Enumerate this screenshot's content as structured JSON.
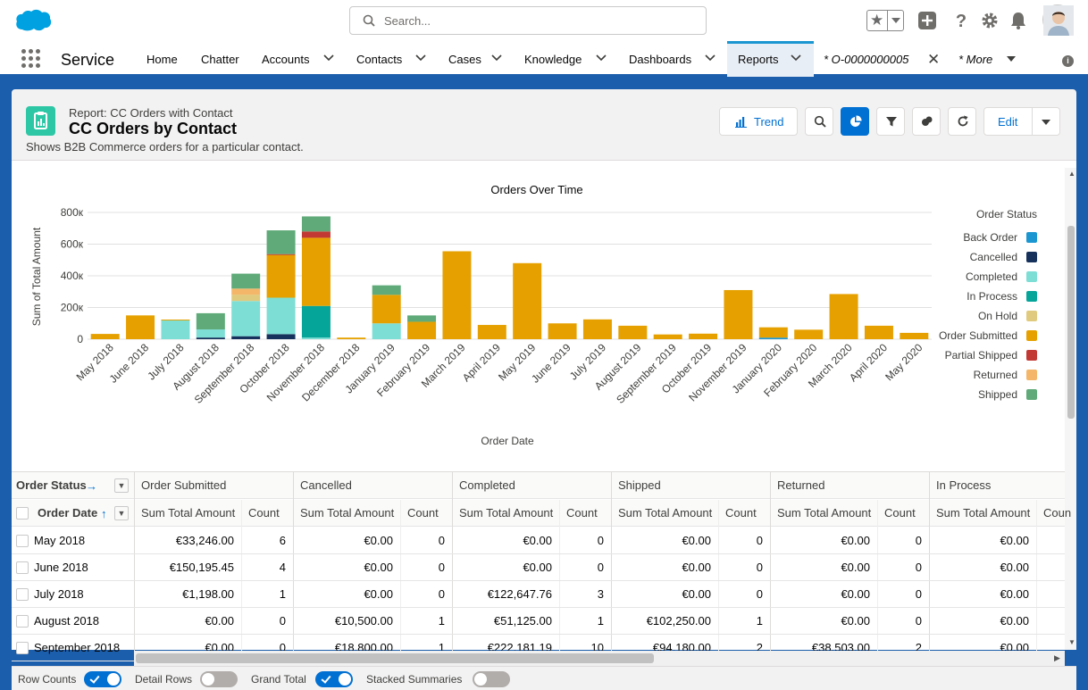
{
  "header": {
    "search_placeholder": "Search..."
  },
  "nav": {
    "app_name": "Service",
    "items": [
      {
        "label": "Home"
      },
      {
        "label": "Chatter"
      },
      {
        "label": "Accounts"
      },
      {
        "label": "Contacts"
      },
      {
        "label": "Cases"
      },
      {
        "label": "Knowledge"
      },
      {
        "label": "Dashboards"
      },
      {
        "label": "Reports"
      },
      {
        "label": "* O-0000000005"
      },
      {
        "label": "* More"
      }
    ]
  },
  "report": {
    "type_label": "Report: CC Orders with Contact",
    "title": "CC Orders by Contact",
    "description": "Shows B2B Commerce orders for a particular contact.",
    "trend_label": "Trend",
    "edit_label": "Edit"
  },
  "colors": {
    "Back Order": "#1b96d1",
    "Cancelled": "#16325c",
    "Completed": "#7dded5",
    "In Process": "#06a59a",
    "On Hold": "#e0ca7d",
    "Order Submitted": "#e6a100",
    "Partial Shipped": "#c23934",
    "Returned": "#f4b76a",
    "Shipped": "#5faa78"
  },
  "chart_data": {
    "type": "bar",
    "stacked": true,
    "title": "Orders Over Time",
    "xlabel": "Order Date",
    "ylabel": "Sum of Total Amount",
    "ylim": [
      0,
      800000
    ],
    "yticks": [
      0,
      200000,
      400000,
      600000,
      800000
    ],
    "ytick_labels": [
      "0",
      "200к",
      "400к",
      "600к",
      "800к"
    ],
    "legend_title": "Order Status",
    "legend_position": "right",
    "categories": [
      "May 2018",
      "June 2018",
      "July 2018",
      "August 2018",
      "September 2018",
      "October 2018",
      "November 2018",
      "December 2018",
      "January 2019",
      "February 2019",
      "March 2019",
      "April 2019",
      "May 2019",
      "June 2019",
      "July 2019",
      "August 2019",
      "September 2019",
      "October 2019",
      "November 2019",
      "January 2020",
      "February 2020",
      "March 2020",
      "April 2020",
      "May 2020"
    ],
    "series": [
      {
        "name": "Back Order",
        "values": [
          0,
          0,
          0,
          0,
          0,
          0,
          0,
          0,
          0,
          0,
          0,
          0,
          0,
          0,
          0,
          0,
          0,
          0,
          0,
          10000,
          0,
          0,
          0,
          0
        ]
      },
      {
        "name": "Cancelled",
        "values": [
          0,
          0,
          0,
          10500,
          18800,
          32000,
          0,
          0,
          0,
          0,
          0,
          0,
          0,
          0,
          0,
          0,
          0,
          0,
          0,
          0,
          0,
          0,
          0,
          0
        ]
      },
      {
        "name": "Completed",
        "values": [
          0,
          0,
          122648,
          51125,
          222181,
          230000,
          10000,
          0,
          100000,
          0,
          0,
          0,
          0,
          0,
          0,
          0,
          0,
          0,
          0,
          0,
          0,
          0,
          0,
          0
        ]
      },
      {
        "name": "In Process",
        "values": [
          0,
          0,
          0,
          0,
          0,
          0,
          200000,
          0,
          0,
          0,
          0,
          0,
          0,
          0,
          0,
          0,
          0,
          0,
          0,
          0,
          0,
          0,
          0,
          0
        ]
      },
      {
        "name": "On Hold",
        "values": [
          0,
          0,
          0,
          0,
          40000,
          0,
          0,
          0,
          0,
          0,
          0,
          0,
          0,
          0,
          0,
          0,
          0,
          0,
          0,
          0,
          0,
          0,
          0,
          0
        ]
      },
      {
        "name": "Order Submitted",
        "values": [
          33246,
          150195,
          1198,
          0,
          0,
          270000,
          430000,
          10000,
          180000,
          110000,
          555000,
          90000,
          480000,
          100000,
          125000,
          85000,
          30000,
          35000,
          310000,
          65000,
          60000,
          285000,
          85000,
          40000
        ]
      },
      {
        "name": "Partial Shipped",
        "values": [
          0,
          0,
          0,
          0,
          0,
          5000,
          40000,
          0,
          0,
          0,
          0,
          0,
          0,
          0,
          0,
          0,
          0,
          0,
          0,
          0,
          0,
          0,
          0,
          0
        ]
      },
      {
        "name": "Returned",
        "values": [
          0,
          0,
          0,
          0,
          38503,
          0,
          0,
          0,
          0,
          0,
          0,
          0,
          0,
          0,
          0,
          0,
          0,
          0,
          0,
          0,
          0,
          0,
          0,
          0
        ]
      },
      {
        "name": "Shipped",
        "values": [
          0,
          0,
          0,
          102250,
          94180,
          150000,
          95000,
          0,
          60000,
          40000,
          0,
          0,
          0,
          0,
          0,
          0,
          0,
          0,
          0,
          0,
          0,
          0,
          0,
          0
        ]
      }
    ]
  },
  "table": {
    "row_group_label": "Order Status",
    "col_group_label": "Order Date",
    "status_columns": [
      "Order Submitted",
      "Cancelled",
      "Completed",
      "Shipped",
      "Returned",
      "In Process"
    ],
    "sum_label": "Sum Total Amount",
    "count_label": "Count",
    "count_label_truncated": "Coun",
    "rows": [
      {
        "date": "May 2018",
        "cells": [
          [
            "€33,246.00",
            "6"
          ],
          [
            "€0.00",
            "0"
          ],
          [
            "€0.00",
            "0"
          ],
          [
            "€0.00",
            "0"
          ],
          [
            "€0.00",
            "0"
          ],
          [
            "€0.00",
            ""
          ]
        ]
      },
      {
        "date": "June 2018",
        "cells": [
          [
            "€150,195.45",
            "4"
          ],
          [
            "€0.00",
            "0"
          ],
          [
            "€0.00",
            "0"
          ],
          [
            "€0.00",
            "0"
          ],
          [
            "€0.00",
            "0"
          ],
          [
            "€0.00",
            ""
          ]
        ]
      },
      {
        "date": "July 2018",
        "cells": [
          [
            "€1,198.00",
            "1"
          ],
          [
            "€0.00",
            "0"
          ],
          [
            "€122,647.76",
            "3"
          ],
          [
            "€0.00",
            "0"
          ],
          [
            "€0.00",
            "0"
          ],
          [
            "€0.00",
            ""
          ]
        ]
      },
      {
        "date": "August 2018",
        "cells": [
          [
            "€0.00",
            "0"
          ],
          [
            "€10,500.00",
            "1"
          ],
          [
            "€51,125.00",
            "1"
          ],
          [
            "€102,250.00",
            "1"
          ],
          [
            "€0.00",
            "0"
          ],
          [
            "€0.00",
            ""
          ]
        ]
      },
      {
        "date": "September 2018",
        "cells": [
          [
            "€0.00",
            "0"
          ],
          [
            "€18,800.00",
            "1"
          ],
          [
            "€222,181.19",
            "10"
          ],
          [
            "€94,180.00",
            "2"
          ],
          [
            "€38,503.00",
            "2"
          ],
          [
            "€0.00",
            ""
          ]
        ]
      }
    ]
  },
  "footer": {
    "row_counts": {
      "label": "Row Counts",
      "on": true
    },
    "detail_rows": {
      "label": "Detail Rows",
      "on": false
    },
    "grand_total": {
      "label": "Grand Total",
      "on": true
    },
    "stacked_summaries": {
      "label": "Stacked Summaries",
      "on": false
    }
  }
}
